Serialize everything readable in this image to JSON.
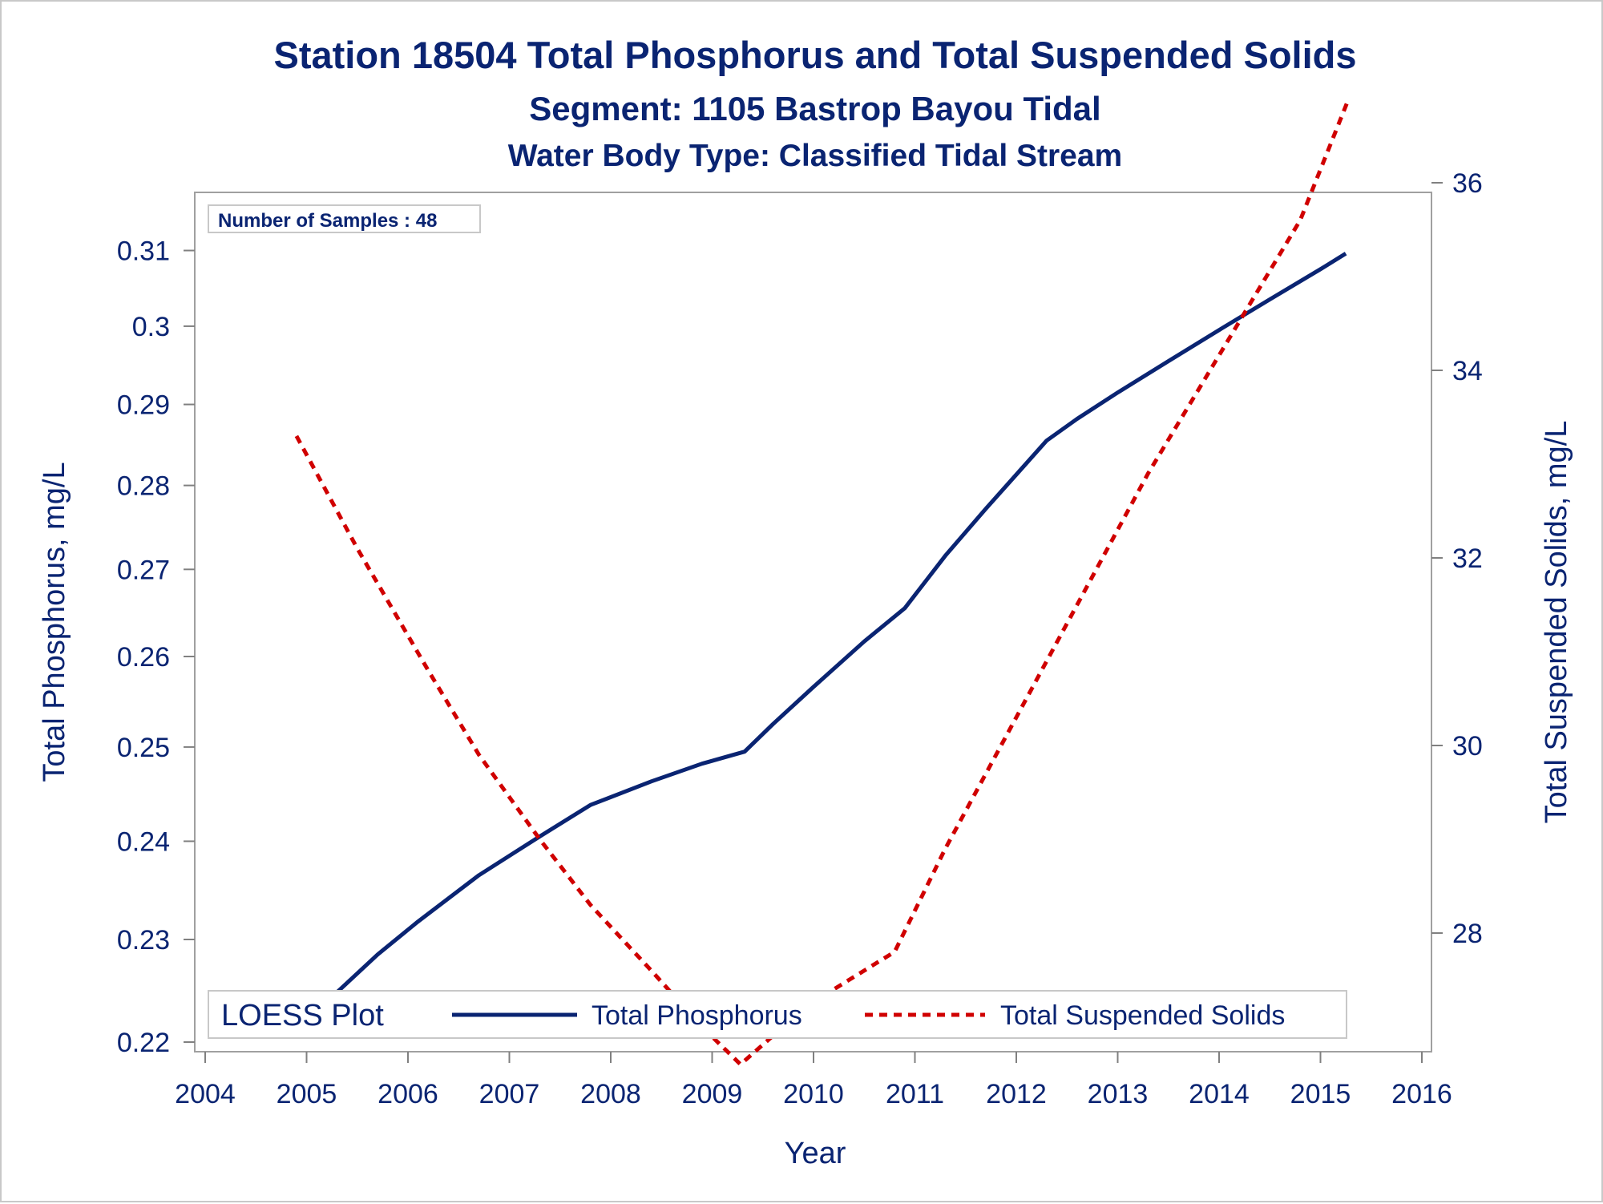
{
  "chart_data": {
    "type": "line",
    "title": "Station 18504  Total Phosphorus and Total Suspended Solids",
    "subtitle": "Segment: 1105  Bastrop Bayou Tidal",
    "subtitle2": "Water Body Type: Classified Tidal Stream",
    "xlabel": "Year",
    "ylabel": "Total Phosphorus, mg/L",
    "y2label": "Total Suspended Solids, mg/L",
    "xlim": [
      2004,
      2016
    ],
    "ylim": [
      0.22,
      0.312
    ],
    "y_scale": "log",
    "y2lim": [
      26.5,
      37.0
    ],
    "x_ticks": [
      2004,
      2005,
      2006,
      2007,
      2008,
      2009,
      2010,
      2011,
      2012,
      2013,
      2014,
      2015,
      2016
    ],
    "y_ticks": [
      0.22,
      0.23,
      0.24,
      0.25,
      0.26,
      0.27,
      0.28,
      0.29,
      0.3,
      0.31
    ],
    "y_tick_labels": [
      "0.22",
      "0.23",
      "0.24",
      "0.25",
      "0.26",
      "0.27",
      "0.28",
      "0.29",
      "0.3",
      "0.31"
    ],
    "y2_ticks": [
      28,
      30,
      32,
      34,
      36
    ],
    "annotation": "Number of Samples : 48",
    "legend": {
      "title": "LOESS Plot",
      "placement": "bottom-inside"
    },
    "series": [
      {
        "name": "Total Phosphorus",
        "axis": "left",
        "color": "#0a2472",
        "style": "solid",
        "points": [
          [
            2004.95,
            0.2215
          ],
          [
            2005.3,
            0.2248
          ],
          [
            2005.7,
            0.2285
          ],
          [
            2006.1,
            0.2318
          ],
          [
            2006.7,
            0.2365
          ],
          [
            2007.3,
            0.2405
          ],
          [
            2007.8,
            0.2438
          ],
          [
            2008.4,
            0.2463
          ],
          [
            2008.9,
            0.2482
          ],
          [
            2009.32,
            0.2495
          ],
          [
            2009.6,
            0.2525
          ],
          [
            2010.0,
            0.2566
          ],
          [
            2010.5,
            0.2617
          ],
          [
            2010.9,
            0.2655
          ],
          [
            2011.3,
            0.2716
          ],
          [
            2011.7,
            0.2772
          ],
          [
            2012.3,
            0.2855
          ],
          [
            2012.6,
            0.2882
          ],
          [
            2013.0,
            0.2915
          ],
          [
            2013.5,
            0.2955
          ],
          [
            2014.0,
            0.2995
          ],
          [
            2014.5,
            0.3035
          ],
          [
            2015.0,
            0.3075
          ],
          [
            2015.25,
            0.3096
          ]
        ]
      },
      {
        "name": "Total Suspended Solids",
        "axis": "right",
        "color": "#d00000",
        "style": "dashed",
        "points": [
          [
            2004.9,
            33.3
          ],
          [
            2005.5,
            32.1
          ],
          [
            2006.2,
            30.8
          ],
          [
            2006.7,
            29.9
          ],
          [
            2007.3,
            29.0
          ],
          [
            2007.8,
            28.3
          ],
          [
            2008.4,
            27.6
          ],
          [
            2008.9,
            27.0
          ],
          [
            2009.28,
            26.6
          ],
          [
            2009.7,
            27.0
          ],
          [
            2010.2,
            27.4
          ],
          [
            2010.8,
            27.8
          ],
          [
            2011.3,
            28.9
          ],
          [
            2011.8,
            29.9
          ],
          [
            2012.3,
            30.9
          ],
          [
            2012.8,
            31.9
          ],
          [
            2013.3,
            32.9
          ],
          [
            2013.8,
            33.8
          ],
          [
            2014.3,
            34.7
          ],
          [
            2014.8,
            35.6
          ],
          [
            2015.28,
            36.9
          ]
        ]
      }
    ]
  }
}
